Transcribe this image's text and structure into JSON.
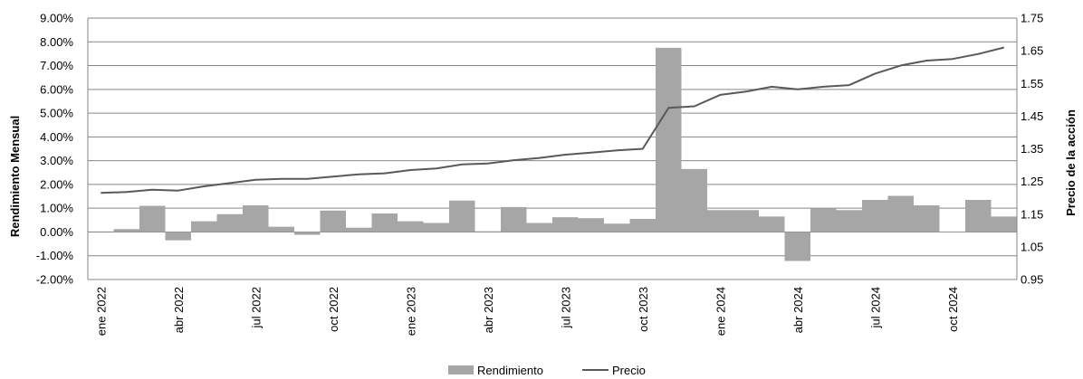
{
  "chart_data": {
    "type": "bar+line",
    "title": "",
    "y_left_label": "Rendimiento Mensual",
    "y_right_label": "Precio de la acción",
    "y_left_ticks": [
      "9.00%",
      "8.00%",
      "7.00%",
      "6.00%",
      "5.00%",
      "4.00%",
      "3.00%",
      "2.00%",
      "1.00%",
      "0.00%",
      "-1.00%",
      "-2.00%"
    ],
    "y_left_range": [
      -2,
      9
    ],
    "y_right_ticks": [
      "1.75",
      "1.65",
      "1.55",
      "1.45",
      "1.35",
      "1.25",
      "1.15",
      "1.05",
      "0.95"
    ],
    "y_right_range": [
      0.95,
      1.75
    ],
    "x_tick_labels": [
      "ene 2022",
      "abr 2022",
      "jul 2022",
      "oct 2022",
      "ene 2023",
      "abr 2023",
      "jul 2023",
      "oct 2023",
      "ene 2024",
      "abr 2024",
      "jul 2024",
      "oct 2024"
    ],
    "months": [
      "2022-01",
      "2022-02",
      "2022-03",
      "2022-04",
      "2022-05",
      "2022-06",
      "2022-07",
      "2022-08",
      "2022-09",
      "2022-10",
      "2022-11",
      "2022-12",
      "2023-01",
      "2023-02",
      "2023-03",
      "2023-04",
      "2023-05",
      "2023-06",
      "2023-07",
      "2023-08",
      "2023-09",
      "2023-10",
      "2023-11",
      "2023-12",
      "2024-01",
      "2024-02",
      "2024-03",
      "2024-04",
      "2024-05",
      "2024-06",
      "2024-07",
      "2024-08",
      "2024-09",
      "2024-10",
      "2024-11",
      "2024-12"
    ],
    "series": [
      {
        "name": "Rendimiento",
        "type": "bar",
        "axis": "left",
        "color": "#a6a6a6",
        "values": [
          0.0,
          0.12,
          1.1,
          -0.35,
          0.45,
          0.75,
          1.12,
          0.22,
          -0.12,
          0.9,
          0.18,
          0.78,
          0.45,
          0.38,
          1.32,
          0.03,
          1.05,
          0.38,
          0.62,
          0.58,
          0.35,
          0.55,
          7.75,
          2.65,
          0.92,
          0.92,
          0.65,
          -1.22,
          1.0,
          0.92,
          1.35,
          1.52,
          1.12,
          -0.02,
          1.35,
          0.65
        ]
      },
      {
        "name": "Precio",
        "type": "line",
        "axis": "right",
        "color": "#595959",
        "x": [
          "2022-01",
          "2022-02",
          "2022-03",
          "2022-04",
          "2022-05",
          "2022-06",
          "2022-07",
          "2022-08",
          "2022-09",
          "2022-10",
          "2022-11",
          "2022-12",
          "2023-01",
          "2023-02",
          "2023-03",
          "2023-04",
          "2023-05",
          "2023-06",
          "2023-07",
          "2023-08",
          "2023-09",
          "2023-10",
          "2023-11",
          "2023-12",
          "2024-01",
          "2024-02",
          "2024-03",
          "2024-04",
          "2024-05",
          "2024-06",
          "2024-07",
          "2024-08",
          "2024-09",
          "2024-10",
          "2024-11",
          "2024-12"
        ],
        "values": [
          1.215,
          1.218,
          1.225,
          1.222,
          1.235,
          1.245,
          1.255,
          1.258,
          1.258,
          1.265,
          1.272,
          1.275,
          1.285,
          1.29,
          1.302,
          1.305,
          1.315,
          1.322,
          1.332,
          1.338,
          1.345,
          1.35,
          1.475,
          1.48,
          1.515,
          1.525,
          1.54,
          1.532,
          1.54,
          1.545,
          1.58,
          1.605,
          1.62,
          1.625,
          1.64,
          1.66
        ]
      }
    ],
    "legend": {
      "position": "bottom",
      "items": [
        {
          "label": "Rendimiento",
          "kind": "bar",
          "color": "#a6a6a6"
        },
        {
          "label": "Precio",
          "kind": "line",
          "color": "#595959"
        }
      ]
    },
    "grid": true
  }
}
